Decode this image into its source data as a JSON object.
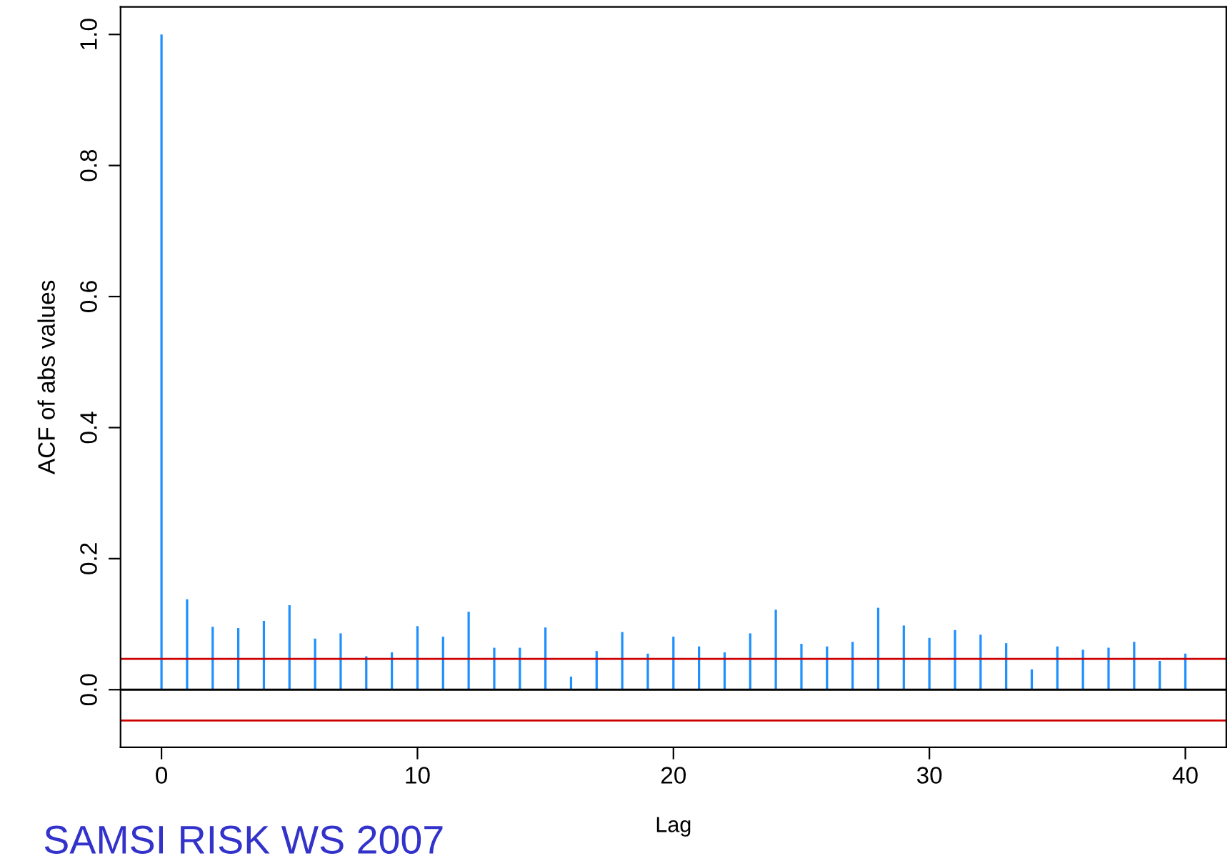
{
  "chart_data": {
    "type": "bar",
    "xlabel": "Lag",
    "ylabel": "ACF of abs values",
    "x": [
      0,
      1,
      2,
      3,
      4,
      5,
      6,
      7,
      8,
      9,
      10,
      11,
      12,
      13,
      14,
      15,
      16,
      17,
      18,
      19,
      20,
      21,
      22,
      23,
      24,
      25,
      26,
      27,
      28,
      29,
      30,
      31,
      32,
      33,
      34,
      35,
      36,
      37,
      38,
      39,
      40
    ],
    "series": [
      {
        "color": "#1e90ff",
        "values": [
          1.0,
          0.138,
          0.096,
          0.094,
          0.105,
          0.129,
          0.078,
          0.086,
          0.051,
          0.057,
          0.097,
          0.081,
          0.119,
          0.064,
          0.064,
          0.095,
          0.02,
          0.059,
          0.088,
          0.055,
          0.081,
          0.066,
          0.057,
          0.086,
          0.122,
          0.07,
          0.066,
          0.073,
          0.125,
          0.098,
          0.079,
          0.091,
          0.084,
          0.071,
          0.031,
          0.066,
          0.061,
          0.064,
          0.073,
          0.044,
          0.055
        ]
      }
    ],
    "xlim": [
      -1.6,
      41.6
    ],
    "ylim": [
      -0.088,
      1.042
    ],
    "xticks": [
      0,
      10,
      20,
      30,
      40
    ],
    "yticks": [
      {
        "value": 0,
        "label": "0.0"
      },
      0.2,
      0.4,
      0.6,
      0.8,
      {
        "value": 1,
        "label": "1.0"
      }
    ],
    "ref_lines": [
      {
        "axis": "y",
        "value": 0,
        "color": "#000000"
      },
      {
        "axis": "y",
        "value": 0.047,
        "color": "#cc0000"
      },
      {
        "axis": "y",
        "value": -0.047,
        "color": "#cc0000"
      }
    ],
    "annotations": [
      "SAMSI RISK WS 2007"
    ],
    "grid": false,
    "legend": false
  }
}
